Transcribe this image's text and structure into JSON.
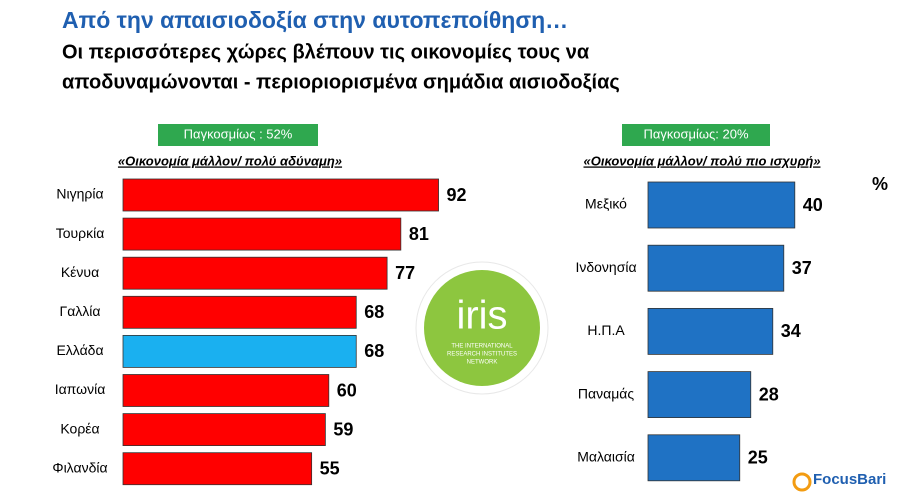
{
  "header": {
    "title": "Από την απαισιοδοξία στην αυτοπεποίθηση…",
    "subtitle_lines": [
      "Οι περισσότερες χώρες  βλέπουν τις οικονομίες τους να",
      "αποδυναμώνονται - περιοριορισμένα σημάδια αισιοδοξίας"
    ]
  },
  "chart_data": [
    {
      "type": "bar",
      "orientation": "horizontal",
      "badge": "Παγκοσμίως : 52%",
      "subtitle": "«Οικονομία μάλλον/ πολύ αδύναμη»",
      "categories": [
        "Νιγηρία",
        "Τουρκία",
        "Κένυα",
        "Γαλλία",
        "Ελλάδα",
        "Ιαπωνία",
        "Κορέα",
        "Φιλανδία"
      ],
      "values": [
        92,
        81,
        77,
        68,
        68,
        60,
        59,
        55
      ],
      "colors": [
        "#ff0000",
        "#ff0000",
        "#ff0000",
        "#ff0000",
        "#1ab0f0",
        "#ff0000",
        "#ff0000",
        "#ff0000"
      ]
    },
    {
      "type": "bar",
      "orientation": "horizontal",
      "badge": "Παγκοσμίως: 20%",
      "subtitle": "«Οικονομία  μάλλον/ πολύ πιο ισχυρή»",
      "unit": "%",
      "categories": [
        "Μεξικό",
        "Ινδονησία",
        "Η.Π.Α",
        "Παναμάς",
        "Μαλαισία"
      ],
      "values": [
        40,
        37,
        34,
        28,
        25
      ],
      "color": "#1f72c4"
    }
  ],
  "logo": {
    "name": "iris",
    "tagline_lines": [
      "THE INTERNATIONAL",
      "RESEARCH INSTITUTES",
      "NETWORK"
    ]
  },
  "footer": {
    "brand": "FocusBari"
  }
}
